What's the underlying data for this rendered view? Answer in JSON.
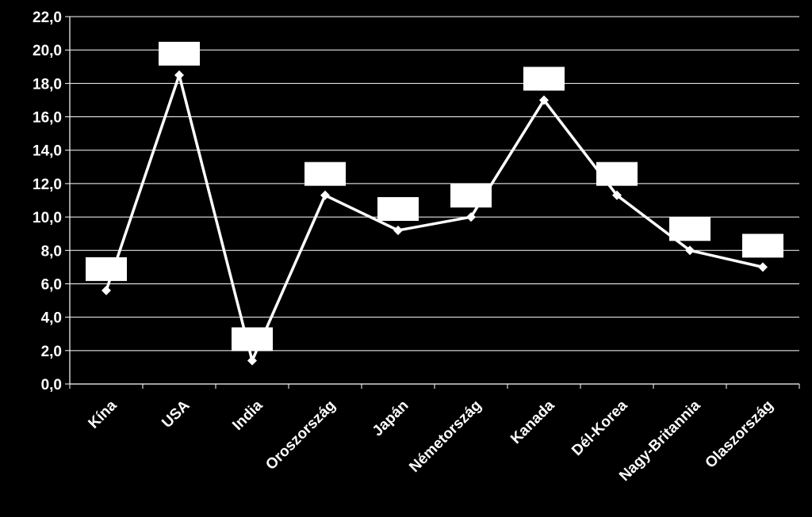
{
  "chart_data": {
    "type": "line",
    "categories": [
      "Kína",
      "USA",
      "India",
      "Oroszország",
      "Japán",
      "Németország",
      "Kanada",
      "Dél-Korea",
      "Nagy-Britannia",
      "Olaszország"
    ],
    "series": [
      {
        "values": [
          5.6,
          18.5,
          1.4,
          11.3,
          9.2,
          10.0,
          17.0,
          11.3,
          8.0,
          7.0
        ]
      }
    ],
    "yticks": [
      "0,0",
      "2,0",
      "4,0",
      "6,0",
      "8,0",
      "10,0",
      "12,0",
      "14,0",
      "16,0",
      "18,0",
      "20,0",
      "22,0"
    ],
    "ylim": [
      0,
      22
    ],
    "grid": true,
    "legend": "none",
    "colors": {
      "background": "#000000",
      "line": "#ffffff",
      "grid": "#ffffff",
      "label_box": "#ffffff"
    }
  }
}
